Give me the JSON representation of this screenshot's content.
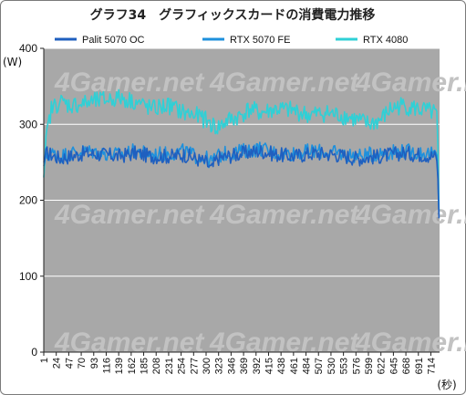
{
  "chart_data": {
    "type": "line",
    "title": "グラフ34　グラフィックスカードの消費電力推移",
    "ylabel": "(W)",
    "xlabel": "(秒)",
    "ylim": [
      0,
      400
    ],
    "yticks": [
      "0",
      "100",
      "200",
      "300",
      "400"
    ],
    "xlim": [
      1,
      730
    ],
    "xticks": [
      "1",
      "24",
      "47",
      "70",
      "93",
      "116",
      "139",
      "162",
      "185",
      "208",
      "231",
      "254",
      "277",
      "300",
      "323",
      "346",
      "369",
      "392",
      "415",
      "438",
      "461",
      "484",
      "507",
      "530",
      "553",
      "576",
      "599",
      "622",
      "645",
      "668",
      "691",
      "714"
    ],
    "grid": true,
    "legend_position": "top",
    "watermark": "4Gamer.net",
    "colors": {
      "plot_bg": "#a8a8a8",
      "palit": "#1f5fbf",
      "fe": "#1e90dc",
      "r4080": "#2fd0d6"
    },
    "series": [
      {
        "name": "Palit 5070 OC",
        "color": "#1f5fbf",
        "x": [
          1,
          6,
          15,
          30,
          50,
          80,
          110,
          140,
          170,
          200,
          240,
          260,
          280,
          300,
          310,
          320,
          340,
          370,
          400,
          430,
          460,
          500,
          540,
          580,
          620,
          660,
          700,
          720,
          726,
          730
        ],
        "y": [
          250,
          262,
          260,
          255,
          258,
          262,
          260,
          258,
          262,
          258,
          258,
          260,
          255,
          250,
          240,
          255,
          258,
          262,
          265,
          260,
          258,
          262,
          260,
          255,
          258,
          262,
          260,
          258,
          255,
          150
        ]
      },
      {
        "name": "RTX 5070 FE",
        "color": "#1e90dc",
        "x": [
          1,
          6,
          15,
          30,
          50,
          80,
          110,
          140,
          170,
          200,
          240,
          260,
          280,
          300,
          310,
          320,
          340,
          370,
          400,
          430,
          460,
          500,
          540,
          580,
          620,
          660,
          700,
          720,
          726,
          730
        ],
        "y": [
          245,
          258,
          262,
          258,
          262,
          265,
          262,
          260,
          265,
          260,
          262,
          265,
          258,
          255,
          250,
          258,
          262,
          265,
          268,
          262,
          262,
          265,
          262,
          258,
          262,
          265,
          262,
          260,
          258,
          155
        ]
      },
      {
        "name": "RTX 4080",
        "color": "#2fd0d6",
        "x": [
          1,
          6,
          15,
          30,
          50,
          80,
          110,
          140,
          170,
          200,
          230,
          260,
          290,
          300,
          320,
          340,
          360,
          380,
          400,
          430,
          460,
          490,
          520,
          560,
          600,
          620,
          640,
          660,
          690,
          720,
          726,
          730
        ],
        "y": [
          230,
          285,
          320,
          330,
          325,
          328,
          332,
          335,
          330,
          320,
          325,
          315,
          310,
          305,
          295,
          305,
          310,
          320,
          315,
          320,
          318,
          312,
          315,
          310,
          300,
          305,
          320,
          325,
          320,
          315,
          310,
          145
        ]
      }
    ]
  }
}
